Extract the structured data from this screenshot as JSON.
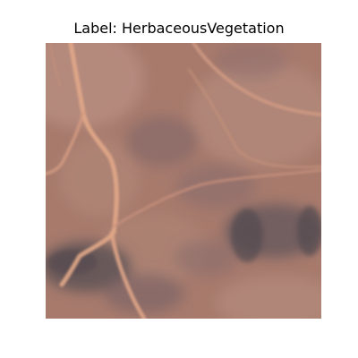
{
  "figure": {
    "title": "Label: HerbaceousVegetation"
  },
  "image": {
    "subject": "satellite-terrain-tile",
    "colors": {
      "base": "#a77a6c",
      "light": "#b99083",
      "dark": "#6a5a5e",
      "path": "#e3a888"
    }
  }
}
